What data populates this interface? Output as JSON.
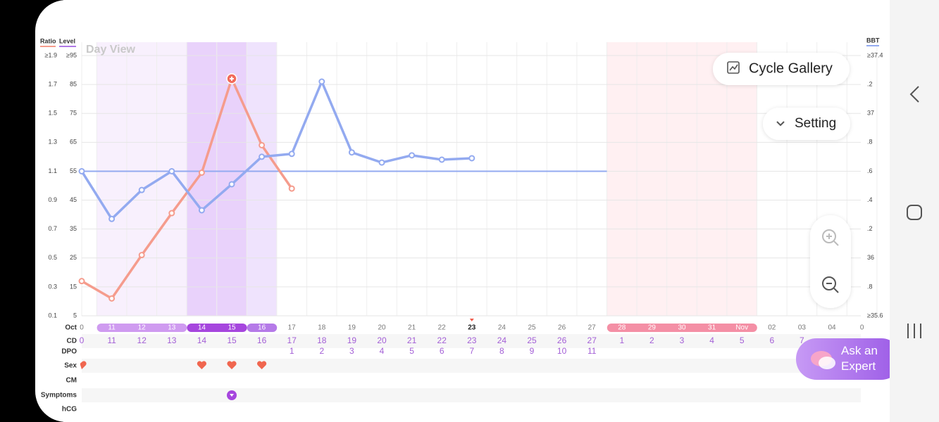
{
  "view_label": "Day View",
  "level_axis_label": "Level",
  "buttons": {
    "cycle_gallery": "Cycle Gallery",
    "setting": "Setting",
    "ask_expert": "Ask an Expert"
  },
  "rows": {
    "month": "Oct",
    "cd": "CD",
    "dpo": "DPO",
    "sex": "Sex",
    "cm": "CM",
    "symptoms": "Symptoms",
    "hcg": "hCG"
  },
  "chart_data": {
    "type": "line",
    "categories": [
      "0",
      "11",
      "12",
      "13",
      "14",
      "15",
      "16",
      "17",
      "18",
      "19",
      "20",
      "21",
      "22",
      "23",
      "24",
      "25",
      "26",
      "27",
      "28",
      "29",
      "30",
      "31",
      "Nov",
      "02",
      "03",
      "04",
      "0"
    ],
    "cd": [
      "0",
      "11",
      "12",
      "13",
      "14",
      "15",
      "16",
      "17",
      "18",
      "19",
      "20",
      "21",
      "22",
      "23",
      "24",
      "25",
      "26",
      "27",
      "1",
      "2",
      "3",
      "4",
      "5",
      "6",
      "7",
      null,
      null
    ],
    "dpo": [
      null,
      null,
      null,
      null,
      null,
      null,
      null,
      "1",
      "2",
      "3",
      "4",
      "5",
      "6",
      "7",
      "8",
      "9",
      "10",
      "11",
      null,
      null,
      null,
      null,
      null,
      null,
      null,
      null,
      null
    ],
    "series": [
      {
        "name": "Ratio",
        "color": "#f59c8d",
        "axis": "y",
        "values": [
          0.34,
          0.22,
          0.52,
          0.81,
          1.09,
          1.74,
          1.28,
          0.98,
          null,
          null,
          null,
          null,
          null,
          null,
          null,
          null,
          null,
          null,
          null,
          null,
          null,
          null,
          null,
          null,
          null,
          null,
          null
        ]
      },
      {
        "name": "BBT",
        "color": "#93aaf0",
        "axis": "y2",
        "values": [
          36.6,
          36.27,
          36.47,
          36.6,
          36.33,
          36.51,
          36.7,
          36.72,
          37.22,
          36.73,
          36.66,
          36.71,
          36.68,
          36.69,
          null,
          null,
          null,
          null,
          null,
          null,
          null,
          null,
          null,
          null,
          null,
          null,
          null
        ]
      }
    ],
    "coverline": 36.6,
    "ylim": [
      0.1,
      1.9
    ],
    "yticks": [
      {
        "value": 1.9,
        "label": "≥1.9"
      },
      1.7,
      1.5,
      1.3,
      1.1,
      0.9,
      0.7,
      0.5,
      0.3,
      0.1
    ],
    "level_lim": [
      5,
      95
    ],
    "level_ticks": [
      {
        "value": 95,
        "label": "≥95"
      },
      85,
      75,
      65,
      55,
      45,
      35,
      25,
      15,
      5
    ],
    "y2lim": [
      35.6,
      37.4
    ],
    "y2ticks": [
      {
        "value": 37.4,
        "label": "≥37.4"
      },
      {
        "value": 37.2,
        "label": ".2"
      },
      37,
      {
        "value": 36.8,
        "label": ".8"
      },
      {
        "value": 36.6,
        "label": ".6"
      },
      {
        "value": 36.4,
        "label": ".4"
      },
      {
        "value": 36.2,
        "label": ".2"
      },
      36,
      {
        "value": 35.8,
        "label": ".8"
      },
      {
        "value": 35.6,
        "label": "≥35.6"
      }
    ],
    "grid": true
  }
}
